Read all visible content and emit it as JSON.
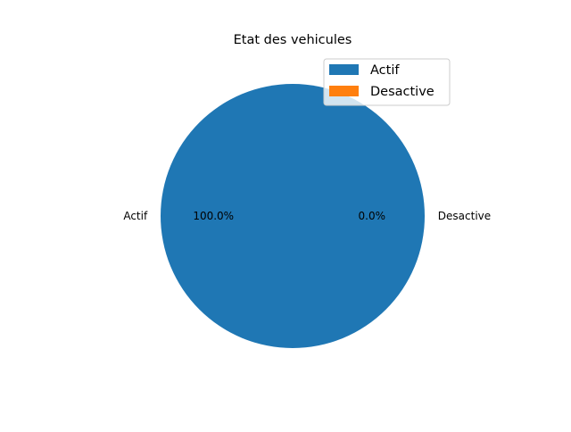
{
  "chart_data": {
    "type": "pie",
    "title": "Etat des vehicules",
    "categories": [
      "Actif",
      "Desactive"
    ],
    "values": [
      100.0,
      0.0
    ],
    "percent_labels": [
      "100.0%",
      "0.0%"
    ],
    "colors": [
      "#1f77b4",
      "#ff7f0e"
    ],
    "legend": {
      "placement": "upper-right",
      "entries": [
        "Actif",
        "Desactive"
      ]
    },
    "start_angle_deg": 0,
    "direction": "counterclockwise"
  }
}
